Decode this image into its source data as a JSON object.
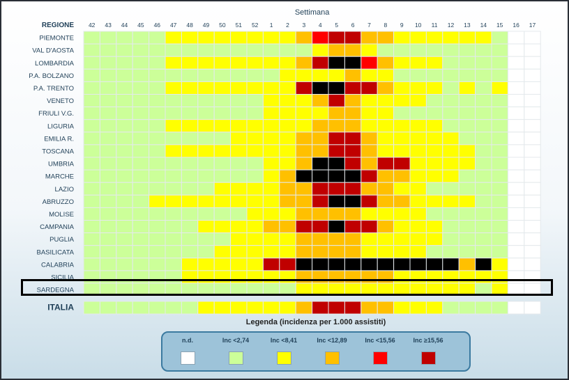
{
  "chart_data": {
    "type": "heatmap",
    "xlabel": "Settimana",
    "row_header": "REGIONE",
    "weeks": [
      "42",
      "43",
      "44",
      "45",
      "46",
      "47",
      "48",
      "49",
      "50",
      "51",
      "52",
      "1",
      "2",
      "3",
      "4",
      "5",
      "6",
      "7",
      "8",
      "9",
      "10",
      "11",
      "12",
      "13",
      "14",
      "15",
      "16",
      "17"
    ],
    "rows": [
      {
        "name": "PIEMONTE",
        "levels": [
          1,
          1,
          1,
          1,
          1,
          2,
          2,
          2,
          2,
          2,
          2,
          2,
          2,
          3,
          4,
          5,
          5,
          3,
          3,
          2,
          2,
          2,
          2,
          2,
          2,
          1,
          0,
          0
        ]
      },
      {
        "name": "VAL D'AOSTA",
        "levels": [
          1,
          1,
          1,
          1,
          1,
          1,
          1,
          1,
          1,
          1,
          1,
          1,
          1,
          1,
          2,
          3,
          3,
          2,
          1,
          1,
          1,
          1,
          1,
          1,
          1,
          1,
          0,
          0
        ]
      },
      {
        "name": "LOMBARDIA",
        "levels": [
          1,
          1,
          1,
          1,
          1,
          2,
          2,
          2,
          2,
          2,
          2,
          2,
          2,
          3,
          5,
          6,
          6,
          4,
          3,
          2,
          2,
          2,
          1,
          1,
          1,
          1,
          0,
          0
        ]
      },
      {
        "name": "P.A. BOLZANO",
        "levels": [
          1,
          1,
          1,
          1,
          1,
          1,
          1,
          1,
          1,
          1,
          1,
          1,
          2,
          2,
          2,
          2,
          3,
          2,
          2,
          1,
          1,
          1,
          1,
          1,
          1,
          1,
          0,
          0
        ]
      },
      {
        "name": "P.A. TRENTO",
        "levels": [
          1,
          1,
          1,
          1,
          1,
          2,
          2,
          2,
          2,
          2,
          2,
          2,
          2,
          5,
          6,
          6,
          5,
          5,
          3,
          2,
          2,
          2,
          1,
          2,
          1,
          2,
          0,
          0
        ]
      },
      {
        "name": "VENETO",
        "levels": [
          1,
          1,
          1,
          1,
          1,
          1,
          1,
          1,
          1,
          1,
          1,
          2,
          2,
          2,
          3,
          5,
          3,
          2,
          2,
          2,
          2,
          1,
          1,
          1,
          1,
          1,
          0,
          0
        ]
      },
      {
        "name": "FRIULI V.G.",
        "levels": [
          1,
          1,
          1,
          1,
          1,
          1,
          1,
          1,
          1,
          1,
          1,
          2,
          2,
          2,
          2,
          3,
          3,
          2,
          2,
          1,
          1,
          1,
          1,
          1,
          1,
          1,
          0,
          0
        ]
      },
      {
        "name": "LIGURIA",
        "levels": [
          1,
          1,
          1,
          1,
          1,
          2,
          2,
          2,
          2,
          2,
          2,
          2,
          2,
          2,
          3,
          3,
          3,
          2,
          2,
          2,
          2,
          2,
          1,
          1,
          1,
          1,
          0,
          0
        ]
      },
      {
        "name": "EMILIA R.",
        "levels": [
          1,
          1,
          1,
          1,
          1,
          1,
          1,
          1,
          1,
          2,
          2,
          2,
          2,
          3,
          3,
          5,
          5,
          3,
          2,
          2,
          2,
          2,
          2,
          1,
          1,
          1,
          0,
          0
        ]
      },
      {
        "name": "TOSCANA",
        "levels": [
          1,
          1,
          1,
          1,
          1,
          2,
          2,
          2,
          2,
          2,
          2,
          2,
          2,
          3,
          3,
          5,
          5,
          3,
          2,
          2,
          2,
          2,
          2,
          2,
          1,
          1,
          0,
          0
        ]
      },
      {
        "name": "UMBRIA",
        "levels": [
          1,
          1,
          1,
          1,
          1,
          1,
          1,
          1,
          1,
          1,
          1,
          2,
          2,
          3,
          6,
          6,
          5,
          3,
          5,
          5,
          2,
          2,
          2,
          2,
          1,
          1,
          0,
          0
        ]
      },
      {
        "name": "MARCHE",
        "levels": [
          1,
          1,
          1,
          1,
          1,
          1,
          1,
          1,
          1,
          1,
          1,
          2,
          3,
          6,
          6,
          6,
          6,
          5,
          3,
          3,
          2,
          2,
          2,
          1,
          1,
          1,
          0,
          0
        ]
      },
      {
        "name": "LAZIO",
        "levels": [
          1,
          1,
          1,
          1,
          1,
          1,
          1,
          1,
          2,
          2,
          2,
          2,
          3,
          3,
          5,
          5,
          5,
          3,
          3,
          2,
          2,
          1,
          1,
          1,
          1,
          1,
          0,
          0
        ]
      },
      {
        "name": "ABRUZZO",
        "levels": [
          1,
          1,
          1,
          1,
          2,
          2,
          2,
          2,
          2,
          2,
          2,
          2,
          3,
          3,
          5,
          6,
          6,
          5,
          3,
          3,
          2,
          2,
          2,
          2,
          1,
          1,
          0,
          0
        ]
      },
      {
        "name": "MOLISE",
        "levels": [
          1,
          1,
          1,
          1,
          1,
          1,
          1,
          1,
          1,
          1,
          2,
          2,
          2,
          3,
          3,
          3,
          3,
          2,
          2,
          2,
          2,
          1,
          1,
          1,
          1,
          1,
          0,
          0
        ]
      },
      {
        "name": "CAMPANIA",
        "levels": [
          1,
          1,
          1,
          1,
          1,
          1,
          1,
          2,
          2,
          2,
          2,
          3,
          3,
          5,
          5,
          6,
          5,
          5,
          3,
          2,
          2,
          2,
          1,
          1,
          1,
          1,
          0,
          0
        ]
      },
      {
        "name": "PUGLIA",
        "levels": [
          1,
          1,
          1,
          1,
          1,
          1,
          1,
          1,
          1,
          2,
          2,
          2,
          2,
          3,
          3,
          3,
          3,
          2,
          2,
          2,
          2,
          2,
          1,
          1,
          1,
          1,
          0,
          0
        ]
      },
      {
        "name": "BASILICATA",
        "levels": [
          1,
          1,
          1,
          1,
          1,
          1,
          1,
          1,
          2,
          2,
          2,
          2,
          2,
          3,
          3,
          3,
          3,
          2,
          2,
          2,
          2,
          1,
          1,
          1,
          1,
          1,
          0,
          0
        ]
      },
      {
        "name": "CALABRIA",
        "levels": [
          1,
          1,
          1,
          1,
          1,
          1,
          2,
          2,
          2,
          2,
          2,
          5,
          5,
          6,
          6,
          6,
          6,
          6,
          6,
          6,
          6,
          6,
          6,
          3,
          6,
          2,
          0,
          0
        ]
      },
      {
        "name": "SICILIA",
        "levels": [
          1,
          1,
          1,
          1,
          1,
          1,
          2,
          2,
          2,
          2,
          2,
          2,
          2,
          3,
          3,
          3,
          3,
          3,
          3,
          2,
          2,
          2,
          2,
          2,
          2,
          2,
          0,
          0
        ]
      },
      {
        "name": "SARDEGNA",
        "levels": [
          1,
          1,
          1,
          1,
          1,
          1,
          1,
          1,
          1,
          1,
          1,
          1,
          1,
          2,
          2,
          2,
          2,
          2,
          2,
          2,
          2,
          2,
          2,
          2,
          1,
          2,
          0,
          0
        ]
      },
      {
        "name": "ITALIA",
        "levels": [
          1,
          1,
          1,
          1,
          1,
          1,
          1,
          2,
          2,
          2,
          2,
          2,
          2,
          3,
          5,
          5,
          5,
          3,
          3,
          2,
          2,
          2,
          1,
          1,
          1,
          1,
          0,
          0
        ]
      }
    ],
    "legend_title": "Legenda (incidenza per 1.000 assistiti)",
    "legend": [
      {
        "label": "n.d.",
        "color": "#ffffff"
      },
      {
        "label": "Inc <2,74",
        "color": "#ccff99"
      },
      {
        "label": "Inc <8,41",
        "color": "#ffff00"
      },
      {
        "label": "Inc <12,89",
        "color": "#ffc000"
      },
      {
        "label": "Inc <15,56",
        "color": "#ff0000"
      },
      {
        "label": "Inc ≥15,56",
        "color": "#c00000"
      }
    ],
    "highlighted_row": "SARDEGNA"
  }
}
